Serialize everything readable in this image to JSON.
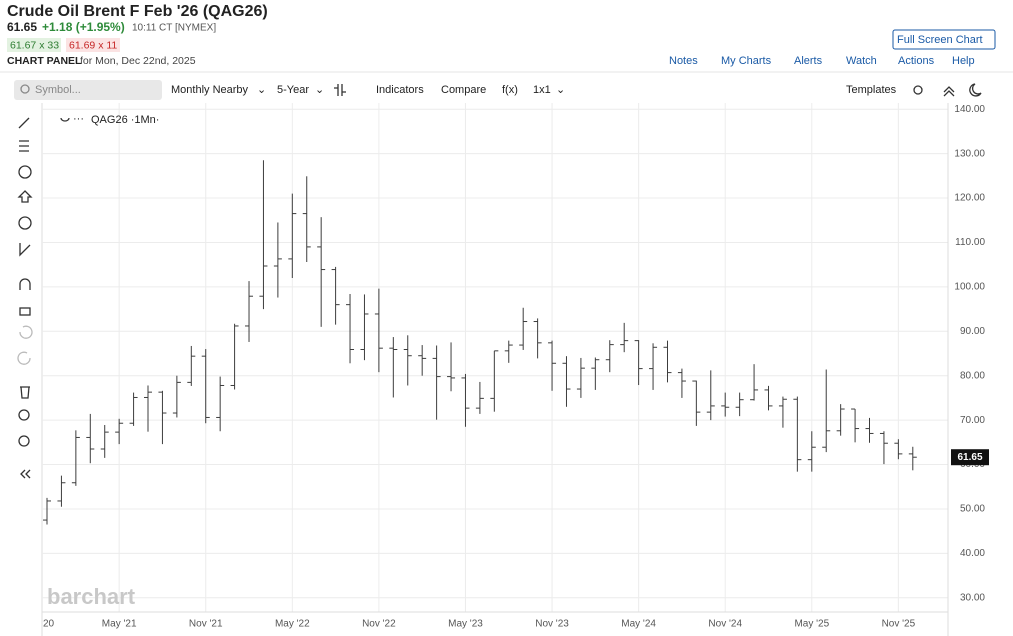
{
  "header": {
    "title": "Crude Oil Brent F Feb '26 (QAG26)",
    "price": "61.65",
    "change": "+1.18 (+1.95%)",
    "time": "10:11 CT [NYMEX]",
    "bid": "61.67 x 33",
    "ask": "61.69 x 11",
    "panel": "CHART PANEL",
    "date": "for Mon, Dec 22nd, 2025",
    "fullscreen": "Full Screen Chart"
  },
  "nav": [
    "Notes",
    "My Charts",
    "Alerts",
    "Watch",
    "Actions",
    "Help"
  ],
  "toolbar": {
    "symbol": "Symbol...",
    "period": "Monthly Nearby",
    "range": "5-Year",
    "indicators": "Indicators",
    "compare": "Compare",
    "fx": "f(x)",
    "layout": "1x1",
    "templates": "Templates"
  },
  "legend": "QAG26 ·1Mn·",
  "watermark": "barchart",
  "chart_data": {
    "type": "ohlc",
    "categories": [
      "20",
      null,
      null,
      null,
      null,
      "May '21",
      null,
      null,
      null,
      null,
      null,
      "Nov '21",
      null,
      null,
      null,
      null,
      null,
      "May '22",
      null,
      null,
      null,
      null,
      null,
      "Nov '22",
      null,
      null,
      null,
      null,
      null,
      "May '23",
      null,
      null,
      null,
      null,
      null,
      "Nov '23",
      null,
      null,
      null,
      null,
      null,
      "May '24",
      null,
      null,
      null,
      null,
      null,
      "Nov '24",
      null,
      null,
      null,
      null,
      null,
      "May '25",
      null,
      null,
      null,
      null,
      null,
      "Nov '25",
      null
    ],
    "open": [
      47.5,
      51.8,
      55.9,
      66.1,
      63.5,
      67.3,
      69.3,
      75.1,
      76.3,
      71.6,
      78.5,
      84.4,
      70.6,
      77.8,
      91.2,
      97.9,
      104.7,
      106.3,
      116.5,
      109.0,
      103.9,
      96.0,
      85.9,
      93.9,
      86.2,
      85.9,
      84.5,
      83.9,
      79.8,
      79.5,
      72.7,
      74.9,
      85.6,
      86.9,
      92.2,
      87.4,
      82.8,
      77.0,
      81.7,
      83.6,
      87.0,
      87.9,
      81.6,
      86.4,
      80.7,
      78.8,
      71.8,
      73.2,
      72.9,
      74.6,
      76.8,
      73.2,
      74.7,
      61.1,
      63.9,
      67.6,
      72.5,
      68.1,
      67.0,
      64.8,
      62.4
    ],
    "high": [
      52.5,
      57.5,
      67.7,
      71.4,
      68.9,
      70.3,
      76.2,
      77.8,
      76.6,
      80.0,
      86.7,
      86.0,
      79.8,
      91.7,
      101.3,
      128.5,
      114.5,
      121.0,
      124.9,
      115.7,
      104.5,
      98.4,
      98.3,
      99.6,
      88.7,
      89.1,
      86.9,
      86.8,
      87.5,
      80.4,
      78.6,
      85.6,
      87.9,
      95.3,
      92.9,
      87.9,
      84.4,
      84.0,
      84.1,
      88.0,
      91.9,
      88.0,
      87.3,
      87.9,
      81.6,
      78.9,
      81.2,
      76.2,
      76.2,
      82.6,
      77.7,
      75.3,
      75.3,
      67.5,
      81.4,
      73.6,
      72.5,
      70.5,
      67.5,
      65.7,
      64.0
    ],
    "low": [
      46.5,
      50.5,
      55.2,
      60.3,
      61.5,
      64.6,
      68.7,
      67.4,
      64.6,
      70.6,
      77.7,
      69.3,
      67.5,
      76.9,
      87.6,
      95.0,
      97.6,
      102.0,
      105.6,
      91.0,
      91.5,
      82.8,
      83.5,
      80.8,
      75.1,
      77.8,
      80.0,
      70.1,
      76.5,
      68.5,
      71.4,
      71.9,
      82.9,
      85.8,
      83.9,
      76.6,
      73.0,
      75.0,
      76.8,
      80.8,
      85.3,
      77.9,
      76.8,
      78.5,
      75.0,
      68.7,
      70.0,
      70.8,
      70.9,
      74.4,
      72.2,
      68.3,
      58.4,
      58.4,
      62.8,
      66.5,
      65.0,
      64.9,
      60.1,
      61.2,
      58.7
    ],
    "close": [
      51.8,
      55.9,
      66.1,
      63.5,
      67.3,
      69.3,
      75.1,
      76.3,
      71.6,
      78.5,
      84.4,
      70.6,
      77.8,
      91.2,
      97.9,
      104.7,
      106.3,
      116.5,
      109.0,
      103.9,
      96.0,
      85.9,
      93.9,
      86.2,
      85.9,
      84.5,
      83.9,
      79.8,
      79.5,
      72.7,
      74.9,
      85.6,
      86.9,
      92.2,
      87.4,
      82.8,
      77.0,
      81.7,
      83.6,
      87.0,
      87.9,
      81.6,
      86.4,
      80.7,
      78.8,
      71.8,
      73.2,
      72.9,
      74.6,
      76.8,
      73.2,
      74.7,
      61.1,
      63.9,
      67.6,
      72.5,
      68.1,
      67.0,
      64.8,
      62.4,
      61.65
    ],
    "color": "#3c3c3c",
    "grid": true,
    "ylim": [
      26.8,
      141.4
    ],
    "yticks": [
      {
        "value": 30,
        "label": "30.00"
      },
      {
        "value": 40,
        "label": "40.00"
      },
      {
        "value": 50,
        "label": "50.00"
      },
      {
        "value": 60,
        "label": "60.00"
      },
      {
        "value": 70,
        "label": "70.00"
      },
      {
        "value": 80,
        "label": "80.00"
      },
      {
        "value": 90,
        "label": "90.00"
      },
      {
        "value": 100,
        "label": "100.00"
      },
      {
        "value": 110,
        "label": "110.00"
      },
      {
        "value": 120,
        "label": "120.00"
      },
      {
        "value": 130,
        "label": "130.00"
      },
      {
        "value": 140,
        "label": "140.00"
      }
    ]
  }
}
